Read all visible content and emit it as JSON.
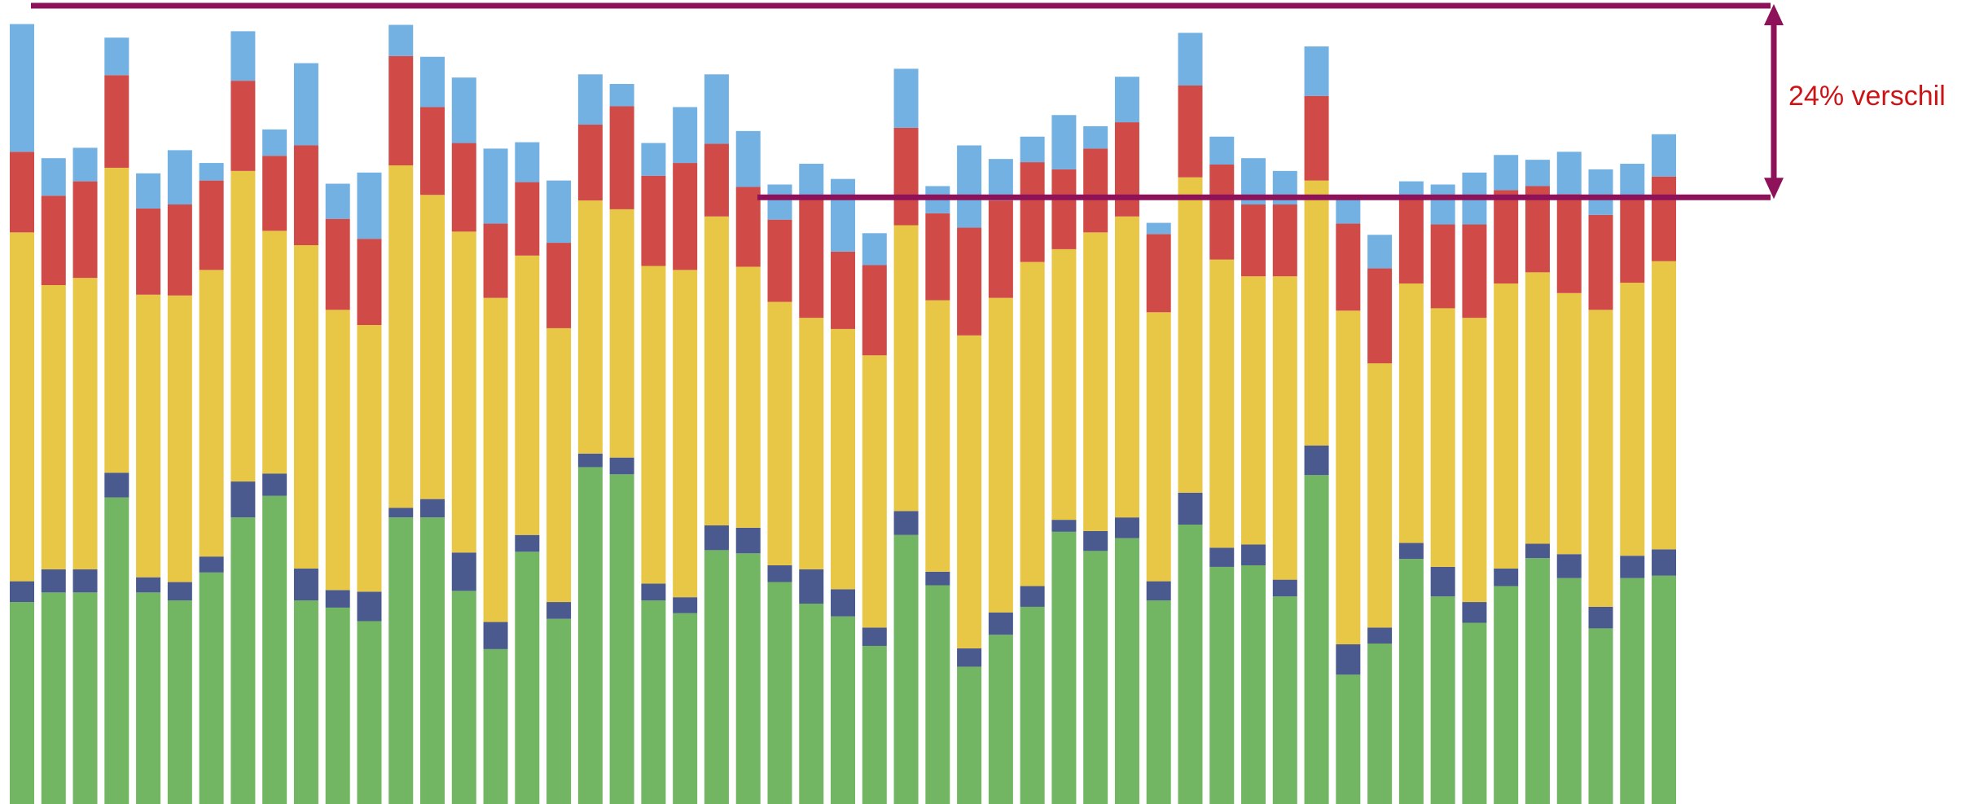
{
  "chart_data": {
    "type": "bar",
    "stacked": true,
    "ylim": [
      0,
      1000
    ],
    "grid": false,
    "legend": "none",
    "series": [
      {
        "color": "#72b562",
        "values": [
          253,
          265,
          265,
          384,
          265,
          255,
          290,
          359,
          386,
          255,
          246,
          229,
          359,
          359,
          267,
          194,
          316,
          232,
          422,
          413,
          255,
          239,
          318,
          314,
          278,
          251,
          235,
          198,
          337,
          274,
          172,
          212,
          247,
          341,
          317,
          333,
          255,
          350,
          297,
          299,
          260,
          412,
          162,
          201,
          307,
          260,
          227,
          273,
          308,
          283,
          220,
          283,
          286
        ]
      },
      {
        "color": "#4a5a8e",
        "values": [
          26,
          29,
          29,
          31,
          19,
          23,
          20,
          45,
          28,
          40,
          22,
          37,
          12,
          23,
          48,
          34,
          21,
          21,
          17,
          21,
          21,
          20,
          31,
          32,
          21,
          43,
          34,
          23,
          30,
          17,
          23,
          28,
          26,
          15,
          25,
          26,
          24,
          40,
          24,
          26,
          21,
          37,
          38,
          20,
          20,
          37,
          26,
          22,
          18,
          30,
          27,
          28,
          33
        ]
      },
      {
        "color": "#e8c646",
        "values": [
          437,
          356,
          365,
          382,
          354,
          359,
          359,
          389,
          304,
          405,
          351,
          334,
          429,
          381,
          402,
          406,
          350,
          343,
          317,
          311,
          398,
          410,
          387,
          327,
          330,
          315,
          326,
          341,
          358,
          340,
          392,
          394,
          406,
          339,
          374,
          377,
          337,
          395,
          361,
          336,
          380,
          332,
          418,
          331,
          325,
          324,
          356,
          357,
          340,
          327,
          372,
          342,
          361
        ]
      },
      {
        "color": "#d04a48",
        "values": [
          101,
          112,
          121,
          116,
          108,
          114,
          112,
          113,
          94,
          125,
          114,
          108,
          137,
          110,
          111,
          93,
          92,
          107,
          95,
          129,
          113,
          134,
          91,
          100,
          103,
          150,
          97,
          113,
          122,
          109,
          135,
          122,
          125,
          100,
          105,
          118,
          98,
          115,
          119,
          90,
          90,
          106,
          109,
          119,
          106,
          105,
          117,
          117,
          108,
          124,
          119,
          104,
          106
        ]
      },
      {
        "color": "#73b1e2",
        "values": [
          160,
          47,
          42,
          47,
          44,
          68,
          22,
          62,
          33,
          103,
          44,
          83,
          39,
          63,
          82,
          94,
          50,
          78,
          63,
          28,
          41,
          70,
          87,
          70,
          44,
          43,
          91,
          40,
          74,
          34,
          103,
          52,
          32,
          68,
          28,
          57,
          14,
          66,
          35,
          58,
          42,
          62,
          33,
          42,
          22,
          50,
          65,
          44,
          33,
          53,
          57,
          45,
          53
        ]
      }
    ],
    "annotation": {
      "label": "24% verschil",
      "bracket_color": "#8e1259",
      "text_color": "#cc1417",
      "top_value": 1000,
      "bottom_value": 760
    }
  }
}
